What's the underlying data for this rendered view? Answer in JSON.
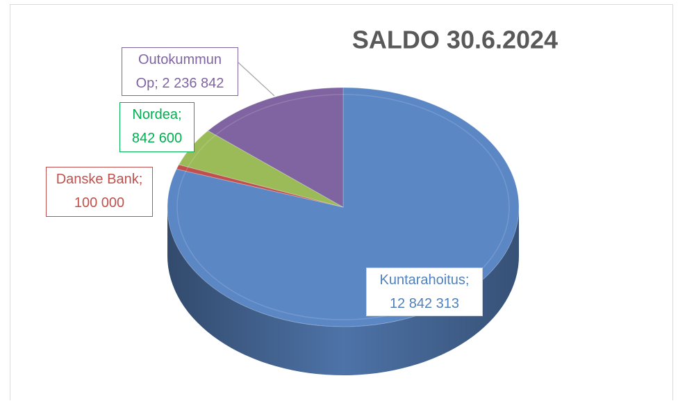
{
  "chart_data": {
    "type": "pie",
    "title": "SALDO 30.6.2024",
    "categories": [
      "Kuntarahoitus",
      "Danske Bank",
      "Nordea",
      "Outokummun Op"
    ],
    "values": [
      12842313,
      100000,
      842600,
      2236842
    ],
    "value_labels": [
      "12 842 313",
      "100 000",
      "842 600",
      "2 236 842"
    ],
    "label_separator": ";",
    "colors": [
      "#5b87c5",
      "#c0504d",
      "#9bbb59",
      "#8064a2"
    ],
    "label_colors": [
      "#4f81bd",
      "#c0504d",
      "#00b050",
      "#8064a2"
    ]
  }
}
